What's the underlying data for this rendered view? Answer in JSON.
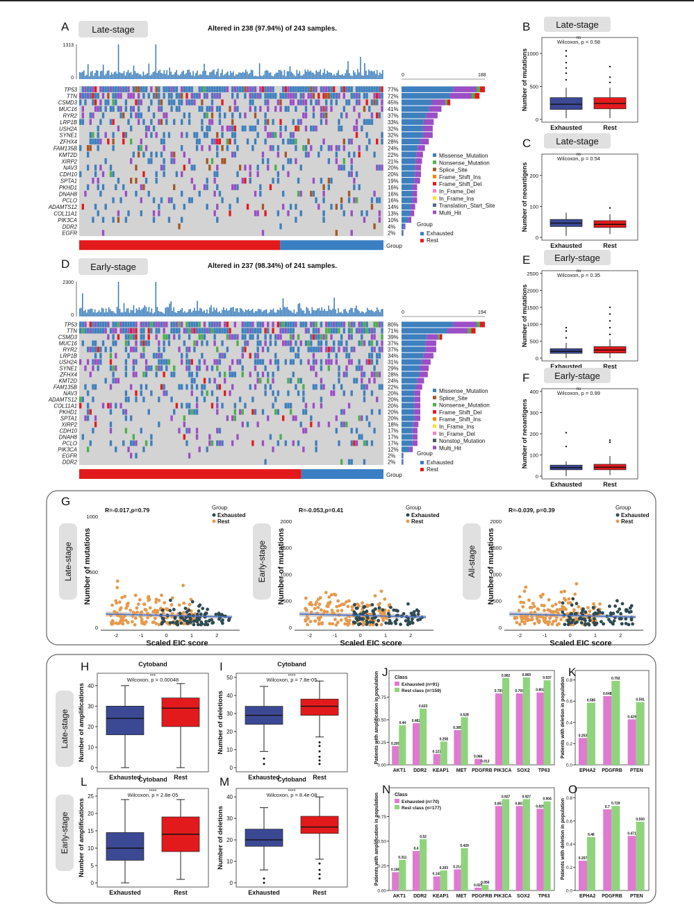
{
  "colors": {
    "exhausted": "#3b4994",
    "rest": "#e31a1c",
    "group_exh": "#3a7fc3",
    "missense": "#3e7fbd",
    "nonsense": "#4daf4a",
    "splice": "#a65628",
    "fs_ins": "#ff7f00",
    "fs_del": "#e41a1c",
    "if_del": "#f781bf",
    "if_ins": "#ffdd33",
    "translation": "#556b8b",
    "nonstop": "#4c5a5a",
    "multi": "#9b4ec5",
    "scatter_exh": "#2e4a52",
    "scatter_rest": "#e59a4c",
    "bar_exh": "#e07ad1",
    "bar_rest": "#8fd47d",
    "fit": "#4a6fc9",
    "grey": "#d3d3d3"
  },
  "panels": {
    "A": "A",
    "B": "B",
    "C": "C",
    "D": "D",
    "E": "E",
    "F": "F",
    "G": "G",
    "H": "H",
    "I": "I",
    "J": "J",
    "K": "K",
    "L": "L",
    "M": "M",
    "N": "N",
    "O": "O"
  },
  "oncoA": {
    "stage": "Late-stage",
    "title": "Altered in 238 (97.94%) of 243 samples.",
    "ymax": "1313",
    "y0": "0",
    "bar0": "0",
    "barmax": "188",
    "genes": [
      "TP53",
      "TTN",
      "CSMD3",
      "MUC16",
      "RYR2",
      "LRP1B",
      "USH2A",
      "SYNE1",
      "ZFHX4",
      "FAM135B",
      "KMT2D",
      "XIRP2",
      "NAV3",
      "CDH10",
      "SPTA1",
      "PKHD1",
      "DNAH8",
      "PCLO",
      "ADAMTS12",
      "COL11A1",
      "PIK3CA",
      "DDR2",
      "EGFR"
    ],
    "pcts": [
      "77%",
      "72%",
      "45%",
      "41%",
      "37%",
      "33%",
      "32%",
      "32%",
      "28%",
      "24%",
      "22%",
      "21%",
      "20%",
      "20%",
      "19%",
      "16%",
      "16%",
      "16%",
      "14%",
      "13%",
      "10%",
      "4%",
      "2%"
    ],
    "fracs": [
      0.77,
      0.72,
      0.45,
      0.41,
      0.37,
      0.33,
      0.32,
      0.32,
      0.28,
      0.24,
      0.22,
      0.21,
      0.2,
      0.2,
      0.19,
      0.16,
      0.16,
      0.16,
      0.14,
      0.13,
      0.1,
      0.04,
      0.02
    ],
    "legend": [
      "Missense_Mutation",
      "Nonsense_Mutation",
      "Splice_Site",
      "Frame_Shift_Ins",
      "Frame_Shift_Del",
      "In_Frame_Del",
      "In_Frame_Ins",
      "Translation_Start_Site",
      "Multi_Hit"
    ],
    "legend_colors": [
      "missense",
      "nonsense",
      "splice",
      "fs_ins",
      "fs_del",
      "if_del",
      "if_ins",
      "translation",
      "multi"
    ],
    "group_title": "Group",
    "group_items": [
      "Exhausted",
      "Rest"
    ],
    "group_label": "Group",
    "split": 0.66
  },
  "oncoD": {
    "stage": "Early-stage",
    "title": "Altered in 237 (98.34%) of 241 samples.",
    "ymax": "2300",
    "y0": "0",
    "bar0": "0",
    "barmax": "194",
    "genes": [
      "TP53",
      "TTN",
      "CSMD3",
      "MUC16",
      "RYR2",
      "LRP1B",
      "USH2A",
      "SYNE1",
      "ZFHX4",
      "KMT2D",
      "FAM135B",
      "NAV3",
      "ADAMTS12",
      "COL11A1",
      "PKHD1",
      "SPTA1",
      "XIRP2",
      "CDH10",
      "DNAH8",
      "PCLO",
      "PIK3CA",
      "EGFR",
      "DDR2"
    ],
    "pcts": [
      "80%",
      "71%",
      "39%",
      "37%",
      "37%",
      "34%",
      "31%",
      "29%",
      "28%",
      "24%",
      "22%",
      "20%",
      "20%",
      "20%",
      "20%",
      "20%",
      "18%",
      "17%",
      "17%",
      "17%",
      "12%",
      "2%",
      "2%"
    ],
    "fracs": [
      0.8,
      0.71,
      0.39,
      0.37,
      0.37,
      0.34,
      0.31,
      0.29,
      0.28,
      0.24,
      0.22,
      0.2,
      0.2,
      0.2,
      0.2,
      0.2,
      0.18,
      0.17,
      0.17,
      0.17,
      0.12,
      0.02,
      0.02
    ],
    "legend": [
      "Missense_Mutation",
      "Splice_Site",
      "Nonsense_Mutation",
      "Frame_Shift_Del",
      "Frame_Shift_Ins",
      "In_Frame_Ins",
      "In_Frame_Del",
      "Nonstop_Mutation",
      "Multi_Hit"
    ],
    "legend_colors": [
      "missense",
      "splice",
      "nonsense",
      "fs_del",
      "fs_ins",
      "if_ins",
      "if_del",
      "nonstop",
      "multi"
    ],
    "group_title": "Group",
    "group_items": [
      "Exhausted",
      "Rest"
    ],
    "group_label": "Group",
    "split": 0.73
  },
  "boxes": {
    "B": {
      "stage": "Late-stage",
      "ylabel": "Number of mutations",
      "stat": "Wilcoxon, p = 0.58",
      "ns": "ns",
      "ticks": [
        "0",
        "500",
        "1000"
      ],
      "xcats": [
        "Exhausted",
        "Rest"
      ]
    },
    "C": {
      "stage": "Late-stage",
      "ylabel": "Number of neoantigens",
      "stat": "Wilcoxon, p = 0.54",
      "ns": "ns",
      "ticks": [
        "0",
        "100",
        "200"
      ],
      "xcats": [
        "Exhausted",
        "Rest"
      ]
    },
    "E": {
      "stage": "Early-stage",
      "ylabel": "Number of mutations",
      "stat": "Wilcoxon, p = 0.35",
      "ns": "ns",
      "ticks": [
        "0",
        "500",
        "1000",
        "1500",
        "2000",
        "2500"
      ],
      "xcats": [
        "Exhausted",
        "Rest"
      ]
    },
    "F": {
      "stage": "Early-stage",
      "ylabel": "Number of neoantigens",
      "stat": "Wilcoxon, p = 0.99",
      "ns": "ns",
      "ticks": [
        "0",
        "100",
        "200",
        "300",
        "400"
      ],
      "xcats": [
        "Exhausted",
        "Rest"
      ]
    },
    "H": {
      "title": "Cytoband",
      "ylabel": "Number of amplifications",
      "stat": "Wilcoxon, p = 0.00048",
      "sig": "***",
      "ticks": [
        "0",
        "10",
        "20",
        "30",
        "40"
      ],
      "xcats": [
        "Exhausted",
        "Rest"
      ]
    },
    "I": {
      "title": "Cytoband",
      "ylabel": "Number of deletions",
      "stat": "Wilcoxon, p = 7.8e-05",
      "sig": "****",
      "ticks": [
        "0",
        "10",
        "20",
        "30",
        "40",
        "50"
      ],
      "xcats": [
        "Exhausted",
        "Rest"
      ]
    },
    "L": {
      "title": "Cytoband",
      "ylabel": "Number of amplifications",
      "stat": "Wilcoxon, p = 2.8e-05",
      "sig": "****",
      "ticks": [
        "0",
        "5",
        "10",
        "15",
        "20",
        "25"
      ],
      "xcats": [
        "Exhausted",
        "Rest"
      ]
    },
    "M": {
      "title": "Cytoband",
      "ylabel": "Number of deletions",
      "stat": "Wilcoxon, p = 8.4e-08",
      "sig": "****",
      "ticks": [
        "0",
        "10",
        "20",
        "30",
        "40"
      ],
      "xcats": [
        "Exhausted",
        "Rest"
      ]
    }
  },
  "scatter": {
    "stages": [
      "Late-stage",
      "Early-stage",
      "All-stage"
    ],
    "stats": [
      "R=-0.017,p=0.79",
      "R=-0.053,p=0.41",
      "R=-0.039, p=0.39"
    ],
    "ylabel": "Number of mutations",
    "xlabel": "Scaled EIC score",
    "legend_title": "Group",
    "legend_items": [
      "Exhausted",
      "Rest"
    ],
    "xticks": [
      "-2",
      "-1",
      "0",
      "1",
      "2"
    ],
    "yticks1": [
      "0",
      "500",
      "1000"
    ],
    "yticks2": [
      "0",
      "500",
      "1000",
      "1500",
      "2000"
    ]
  },
  "rowlabels": [
    "Late-stage",
    "Early-stage"
  ],
  "chart_data": [
    {
      "type": "bar",
      "panel": "J",
      "categories": [
        "AKT1",
        "DDR2",
        "KEAP1",
        "MET",
        "PDGFRB",
        "PIK3CA",
        "SOX2",
        "TP63"
      ],
      "series": [
        {
          "name": "Exhausted (n=91)",
          "values": [
            0.209,
            0.462,
            0.121,
            0.385,
            0.066,
            0.791,
            0.791,
            0.802
          ]
        },
        {
          "name": "Rest class (n=159)",
          "values": [
            0.44,
            0.623,
            0.258,
            0.528,
            0.013,
            0.962,
            0.969,
            0.937
          ]
        }
      ],
      "legend_title": "Class",
      "ylabel": "Patients with amplification in population",
      "ylim": [
        0,
        1
      ],
      "yticks": [
        "0.00",
        "0.25",
        "0.50",
        "0.75"
      ],
      "label_values": [
        "0.209",
        "0.462",
        "0.121",
        "0.385",
        "0.066",
        "0.791",
        "0.791",
        "0.802",
        "0.44",
        "0.623",
        "0.258",
        "0.528",
        "0.013",
        "0.962",
        "0.969",
        "0.937"
      ]
    },
    {
      "type": "bar",
      "panel": "K",
      "categories": [
        "EPHA2",
        "PDGFRB",
        "PTEN"
      ],
      "series": [
        {
          "name": "Exhausted",
          "values": [
            0.253,
            0.648,
            0.429
          ]
        },
        {
          "name": "Rest class",
          "values": [
            0.585,
            0.792,
            0.591
          ]
        }
      ],
      "ylabel": "Patients with deletion in population",
      "ylim": [
        0,
        0.85
      ],
      "yticks": [
        "0.0",
        "0.2",
        "0.4",
        "0.6",
        "0.8"
      ],
      "label_values": [
        "0.253",
        "0.648",
        "0.429",
        "0.585",
        "0.792",
        "0.591"
      ]
    },
    {
      "type": "bar",
      "panel": "N",
      "categories": [
        "AKT1",
        "DDR2",
        "KEAP1",
        "MET",
        "PDGFRB",
        "PIK3CA",
        "SOX2",
        "TP63"
      ],
      "series": [
        {
          "name": "Exhausted (n=70)",
          "values": [
            0.186,
            0.4,
            0.143,
            0.214,
            0.029,
            0.857,
            0.857,
            0.829
          ]
        },
        {
          "name": "Rest class (n=177)",
          "values": [
            0.311,
            0.52,
            0.203,
            0.429,
            0.056,
            0.927,
            0.927,
            0.904
          ]
        }
      ],
      "legend_title": "Class",
      "ylabel": "Patients with amplification in population",
      "ylim": [
        0,
        1
      ],
      "yticks": [
        "0.00",
        "0.25",
        "0.50",
        "0.75"
      ],
      "label_values": [
        "0.186",
        "0.4",
        "0.143",
        "0.214",
        "0.029",
        "0.857",
        "0.857",
        "0.829",
        "0.311",
        "0.52",
        "0.203",
        "0.429",
        "0.056",
        "0.927",
        "0.927",
        "0.904"
      ]
    },
    {
      "type": "bar",
      "panel": "O",
      "categories": [
        "EPHA2",
        "PDGFRB",
        "PTEN"
      ],
      "series": [
        {
          "name": "Exhausted",
          "values": [
            0.257,
            0.7,
            0.471
          ]
        },
        {
          "name": "Rest class",
          "values": [
            0.46,
            0.729,
            0.593
          ]
        }
      ],
      "ylabel": "Patients with deletion in population",
      "ylim": [
        0,
        0.85
      ],
      "yticks": [
        "0.0",
        "0.2",
        "0.4",
        "0.6",
        "0.8"
      ],
      "label_values": [
        "0.257",
        "0.7",
        "0.471",
        "0.46",
        "0.729",
        "0.593"
      ]
    }
  ]
}
